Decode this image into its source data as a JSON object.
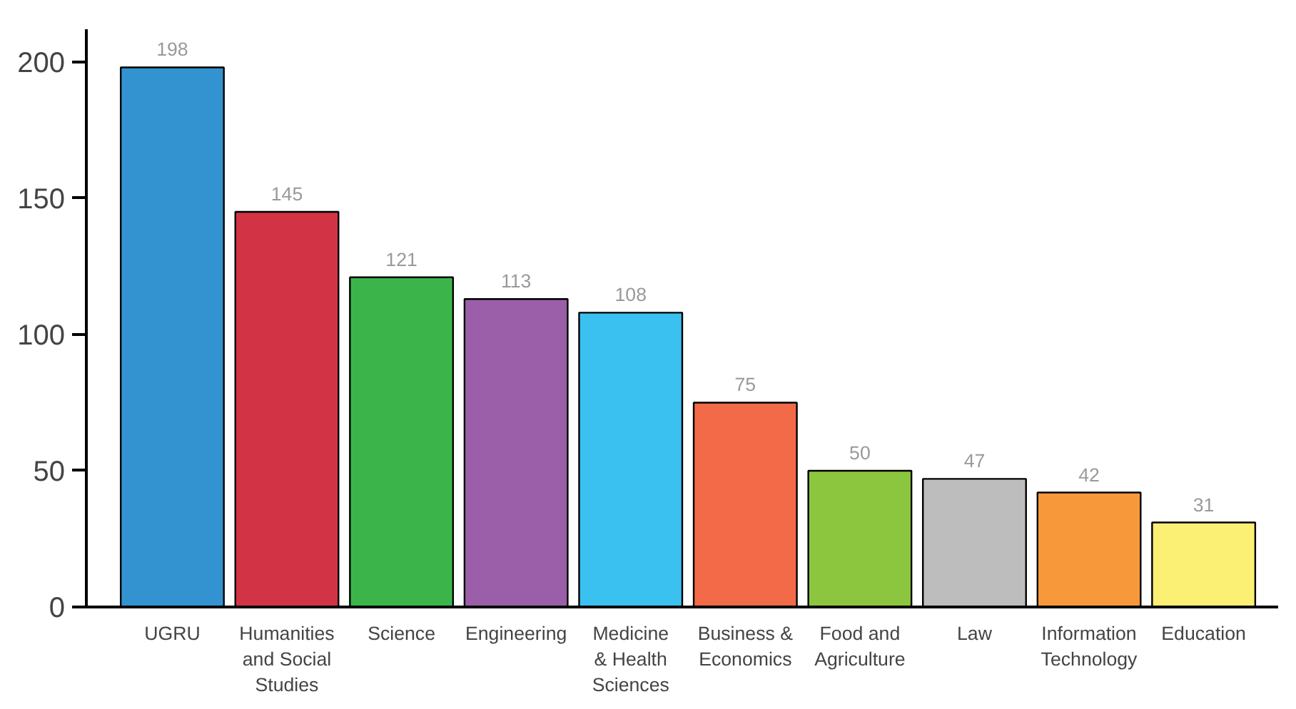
{
  "chart_data": {
    "type": "bar",
    "categories": [
      "UGRU",
      "Humanities\nand Social\nStudies",
      "Science",
      "Engineering",
      "Medicine\n& Health\nSciences",
      "Business &\nEconomics",
      "Food and\nAgriculture",
      "Law",
      "Information\nTechnology",
      "Education"
    ],
    "values": [
      198,
      145,
      121,
      113,
      108,
      75,
      50,
      47,
      42,
      31
    ],
    "colors": [
      "#3393d0",
      "#d33445",
      "#3bb54a",
      "#9b5fa9",
      "#3ac1ef",
      "#f26a47",
      "#8cc63f",
      "#bdbdbd",
      "#f7993b",
      "#fbef74"
    ],
    "ylim": [
      0,
      212
    ],
    "yticks": [
      0,
      50,
      100,
      150,
      200
    ],
    "grid": false,
    "data_labels": true
  }
}
